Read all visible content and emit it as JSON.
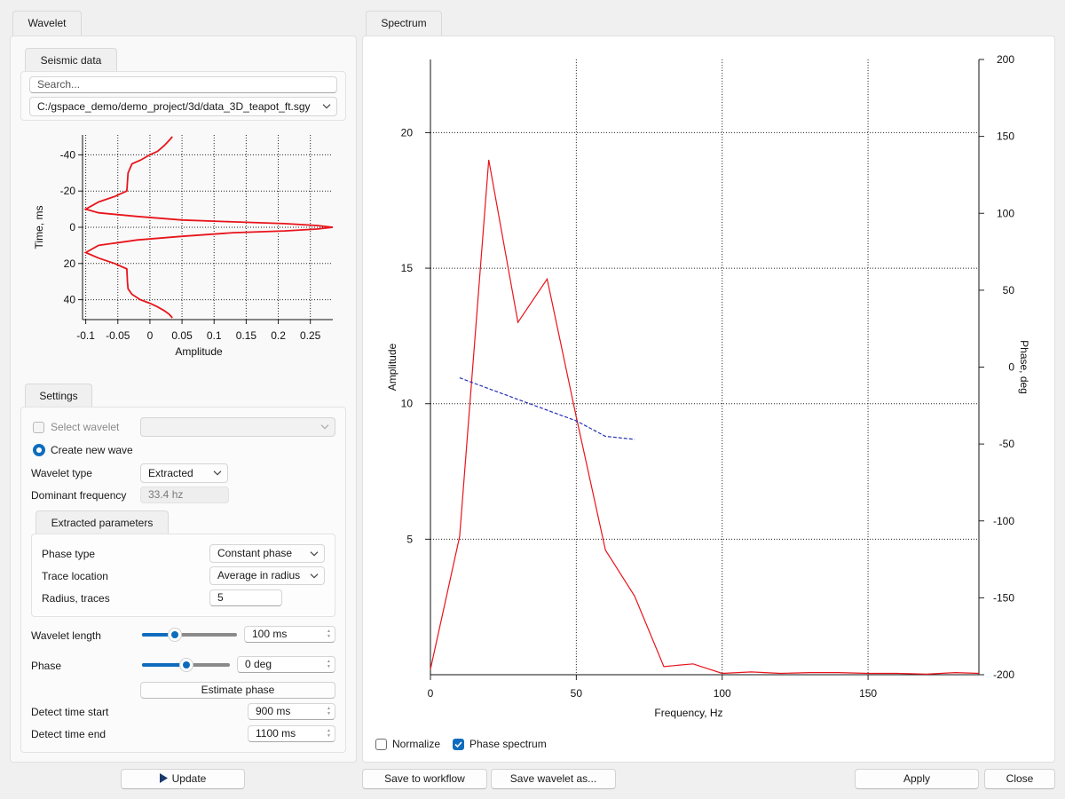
{
  "tabs": {
    "wavelet": "Wavelet",
    "spectrum": "Spectrum"
  },
  "seismic": {
    "tab": "Seismic data",
    "search_placeholder": "Search...",
    "file_path": "C:/gspace_demo/demo_project/3d/data_3D_teapot_ft.sgy"
  },
  "wavelet_chart": {
    "type": "line",
    "xlabel": "Amplitude",
    "ylabel": "Time, ms",
    "x_ticks": [
      "-0.1",
      "-0.05",
      "0",
      "0.05",
      "0.1",
      "0.15",
      "0.2",
      "0.25"
    ],
    "x_tick_values": [
      -0.1,
      -0.05,
      0,
      0.05,
      0.1,
      0.15,
      0.2,
      0.25
    ],
    "y_ticks": [
      "-40",
      "-20",
      "0",
      "20",
      "40"
    ],
    "y_tick_values": [
      -40,
      -20,
      0,
      20,
      40
    ],
    "xlim": [
      -0.105,
      0.285
    ],
    "ylim": [
      -51,
      51
    ],
    "y_inverted": true,
    "grid": true,
    "color": "#e8141b",
    "series": [
      {
        "x": [
          0.035,
          0.03,
          0.022,
          0.012,
          0.0,
          -0.015,
          -0.028,
          -0.034,
          -0.035,
          -0.036,
          -0.055,
          -0.08,
          -0.1,
          -0.08,
          -0.02,
          0.05,
          0.13,
          0.21,
          0.26,
          0.285,
          0.26,
          0.21,
          0.13,
          0.05,
          -0.02,
          -0.08,
          -0.1,
          -0.08,
          -0.055,
          -0.036,
          -0.035,
          -0.034,
          -0.028,
          -0.015,
          0.0,
          0.012,
          0.022,
          0.03,
          0.035
        ],
        "y": [
          -50,
          -48,
          -45,
          -42,
          -40,
          -37,
          -35,
          -30,
          -25,
          -20,
          -17,
          -14,
          -10,
          -8,
          -6,
          -4,
          -3,
          -2,
          -1,
          0,
          1,
          2,
          3,
          5,
          7,
          10,
          14,
          17,
          20,
          23,
          30,
          34,
          37,
          40,
          42,
          44,
          46,
          48,
          50
        ]
      }
    ]
  },
  "settings": {
    "tab": "Settings",
    "select_wavelet_label": "Select wavelet",
    "select_wavelet_checked": false,
    "create_new_label": "Create new wave",
    "wavelet_type_label": "Wavelet type",
    "wavelet_type_value": "Extracted",
    "dominant_freq_label": "Dominant frequency",
    "dominant_freq_value": "33.4 hz",
    "extracted_tab": "Extracted parameters",
    "phase_type_label": "Phase type",
    "phase_type_value": "Constant phase",
    "trace_location_label": "Trace location",
    "trace_location_value": "Average in radius",
    "radius_label": "Radius, traces",
    "radius_value": "5",
    "wavelet_length_label": "Wavelet length",
    "wavelet_length_value": "100 ms",
    "wavelet_length_slider": 0.35,
    "phase_label": "Phase",
    "phase_value": "0 deg",
    "phase_slider": 0.5,
    "estimate_phase_button": "Estimate phase",
    "detect_start_label": "Detect time start",
    "detect_start_value": "900 ms",
    "detect_end_label": "Detect time end",
    "detect_end_value": "1100 ms"
  },
  "update_button": "Update",
  "spectrum_chart": {
    "type": "line",
    "xlabel": "Frequency, Hz",
    "ylabel_left": "Amplitude",
    "ylabel_right": "Phase, deg",
    "x_ticks": [
      "0",
      "50",
      "100",
      "150"
    ],
    "x_tick_values": [
      0,
      50,
      100,
      150
    ],
    "y_ticks_left": [
      "5",
      "10",
      "15",
      "20"
    ],
    "y_tick_values_left": [
      5,
      10,
      15,
      20
    ],
    "y_ticks_right": [
      "200",
      "150",
      "100",
      "50",
      "0",
      "-50",
      "-100",
      "-150",
      "-200"
    ],
    "y_tick_values_right": [
      200,
      150,
      100,
      50,
      0,
      -50,
      -100,
      -150,
      -200
    ],
    "xlim": [
      0,
      188
    ],
    "ylim_left": [
      0,
      22.7
    ],
    "ylim_right": [
      -200,
      200
    ],
    "grid": true,
    "series": [
      {
        "axis": "left",
        "color": "#e8141b",
        "style": "solid",
        "x": [
          0,
          10,
          20,
          30,
          40,
          50,
          60,
          70,
          80,
          90,
          100,
          110,
          120,
          130,
          140,
          150,
          160,
          170,
          180,
          188
        ],
        "y": [
          0.2,
          5.1,
          19.0,
          13.0,
          14.6,
          9.5,
          4.6,
          2.9,
          0.3,
          0.4,
          0.05,
          0.1,
          0.05,
          0.08,
          0.08,
          0.05,
          0.05,
          0.02,
          0.08,
          0.05
        ]
      },
      {
        "axis": "right",
        "color": "#2630b8",
        "style": "dashed",
        "x": [
          10,
          20,
          30,
          40,
          50,
          60,
          70
        ],
        "y": [
          -7,
          -14,
          -21,
          -28,
          -35,
          -45,
          -47
        ]
      }
    ]
  },
  "spectrum_options": {
    "normalize_label": "Normalize",
    "normalize_checked": false,
    "phase_spectrum_label": "Phase spectrum",
    "phase_spectrum_checked": true
  },
  "footer": {
    "save_workflow": "Save to workflow",
    "save_wavelet": "Save wavelet as...",
    "apply": "Apply",
    "close": "Close"
  },
  "colors": {
    "accent": "#0f6cbd",
    "amplitude": "#e8141b",
    "phase": "#2630b8"
  }
}
